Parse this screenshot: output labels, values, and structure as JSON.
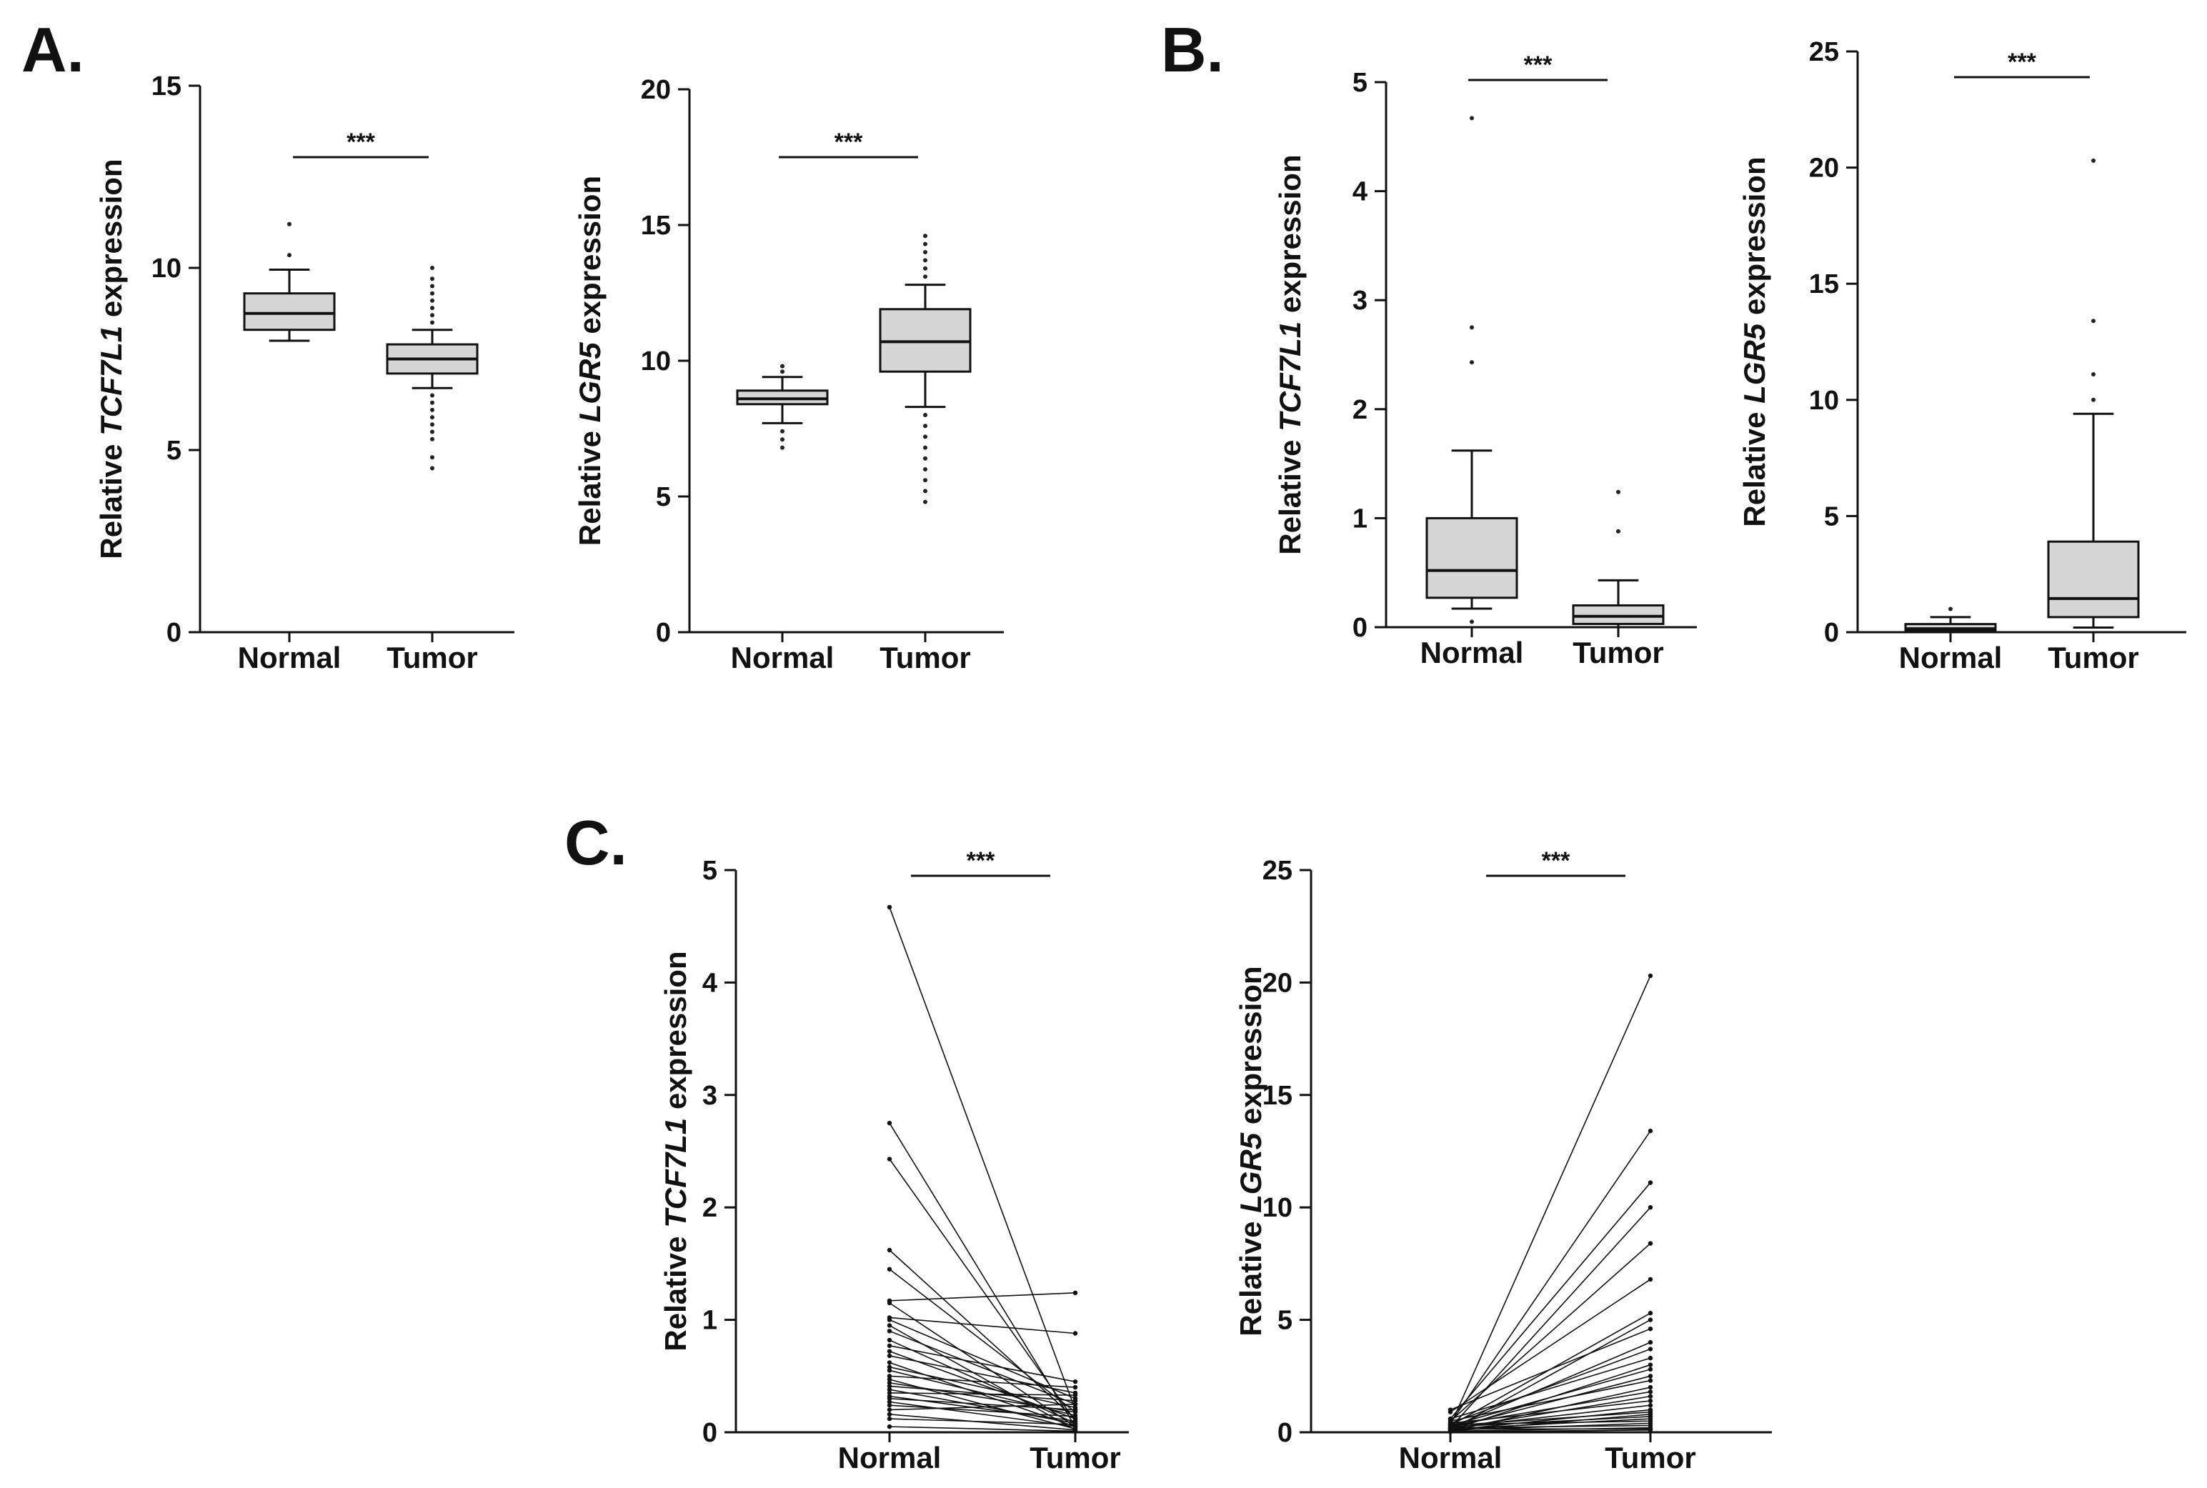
{
  "panels": {
    "A": "A.",
    "B": "B.",
    "C": "C."
  },
  "chart_data": [
    {
      "id": "A1",
      "panel": "A",
      "type": "box",
      "ylabel_pre": "Relative ",
      "ylabel_gene": "TCF7L1",
      "ylabel_post": " expression",
      "ylim": [
        0,
        15
      ],
      "yticks": [
        0,
        5,
        10,
        15
      ],
      "categories": [
        "Normal",
        "Tumor"
      ],
      "significance": "***",
      "boxes": [
        {
          "name": "Normal",
          "whisker_low": 8.0,
          "q1": 8.3,
          "median": 8.75,
          "q3": 9.3,
          "whisker_high": 9.95,
          "outliers": [
            10.35,
            11.2
          ]
        },
        {
          "name": "Tumor",
          "whisker_low": 6.7,
          "q1": 7.1,
          "median": 7.5,
          "q3": 7.9,
          "whisker_high": 8.3,
          "outliers": [
            4.5,
            4.8,
            5.3,
            5.5,
            5.7,
            5.9,
            6.1,
            6.3,
            6.5,
            8.5,
            8.7,
            8.9,
            9.1,
            9.3,
            9.5,
            9.7,
            10.0
          ]
        }
      ]
    },
    {
      "id": "A2",
      "panel": "A",
      "type": "box",
      "ylabel_pre": "Relative ",
      "ylabel_gene": "LGR5",
      "ylabel_post": " expression",
      "ylim": [
        0,
        20
      ],
      "yticks": [
        0,
        5,
        10,
        15,
        20
      ],
      "categories": [
        "Normal",
        "Tumor"
      ],
      "significance": "***",
      "boxes": [
        {
          "name": "Normal",
          "whisker_low": 7.7,
          "q1": 8.4,
          "median": 8.6,
          "q3": 8.9,
          "whisker_high": 9.4,
          "outliers": [
            6.8,
            7.1,
            7.4,
            9.6,
            9.8
          ]
        },
        {
          "name": "Tumor",
          "whisker_low": 8.3,
          "q1": 9.6,
          "median": 10.7,
          "q3": 11.9,
          "whisker_high": 12.8,
          "outliers": [
            4.8,
            5.2,
            5.6,
            6.0,
            6.4,
            6.8,
            7.2,
            7.6,
            8.0,
            13.1,
            13.4,
            13.7,
            14.0,
            14.3,
            14.6
          ]
        }
      ]
    },
    {
      "id": "B1",
      "panel": "B",
      "type": "box",
      "ylabel_pre": "Relative ",
      "ylabel_gene": "TCF7L1",
      "ylabel_post": " expression",
      "ylim": [
        0,
        5
      ],
      "yticks": [
        0,
        1,
        2,
        3,
        4,
        5
      ],
      "categories": [
        "Normal",
        "Tumor"
      ],
      "significance": "***",
      "boxes": [
        {
          "name": "Normal",
          "whisker_low": 0.17,
          "q1": 0.27,
          "median": 0.52,
          "q3": 1.0,
          "whisker_high": 1.62,
          "outliers": [
            0.05,
            2.43,
            2.75,
            4.67
          ]
        },
        {
          "name": "Tumor",
          "whisker_low": 0.0,
          "q1": 0.03,
          "median": 0.1,
          "q3": 0.2,
          "whisker_high": 0.43,
          "outliers": [
            0.88,
            1.24
          ]
        }
      ]
    },
    {
      "id": "B2",
      "panel": "B",
      "type": "box",
      "ylabel_pre": "Relative ",
      "ylabel_gene": "LGR5",
      "ylabel_post": "  expression",
      "ylim": [
        0,
        25
      ],
      "yticks": [
        0,
        5,
        10,
        15,
        20,
        25
      ],
      "categories": [
        "Normal",
        "Tumor"
      ],
      "significance": "***",
      "boxes": [
        {
          "name": "Normal",
          "whisker_low": 0.0,
          "q1": 0.05,
          "median": 0.15,
          "q3": 0.35,
          "whisker_high": 0.65,
          "outliers": [
            1.0
          ]
        },
        {
          "name": "Tumor",
          "whisker_low": 0.2,
          "q1": 0.65,
          "median": 1.45,
          "q3": 3.9,
          "whisker_high": 9.4,
          "outliers": [
            10.0,
            11.1,
            13.4,
            20.3
          ]
        }
      ]
    },
    {
      "id": "C1",
      "panel": "C",
      "type": "line",
      "ylabel_pre": "Relative ",
      "ylabel_gene": "TCF7L1",
      "ylabel_post": " expression",
      "ylim": [
        0,
        5
      ],
      "yticks": [
        0,
        1,
        2,
        3,
        4,
        5
      ],
      "categories": [
        "Normal",
        "Tumor"
      ],
      "significance": "***",
      "pairs": [
        [
          4.67,
          0.2
        ],
        [
          2.75,
          0.05
        ],
        [
          2.43,
          0.1
        ],
        [
          1.62,
          0.12
        ],
        [
          1.45,
          0.18
        ],
        [
          1.17,
          1.24
        ],
        [
          1.15,
          0.05
        ],
        [
          1.02,
          0.88
        ],
        [
          1.0,
          0.3
        ],
        [
          0.95,
          0.02
        ],
        [
          0.9,
          0.25
        ],
        [
          0.82,
          0.08
        ],
        [
          0.77,
          0.45
        ],
        [
          0.72,
          0.12
        ],
        [
          0.68,
          0.35
        ],
        [
          0.62,
          0.05
        ],
        [
          0.58,
          0.22
        ],
        [
          0.55,
          0.15
        ],
        [
          0.5,
          0.4
        ],
        [
          0.47,
          0.03
        ],
        [
          0.44,
          0.18
        ],
        [
          0.41,
          0.28
        ],
        [
          0.38,
          0.08
        ],
        [
          0.35,
          0.33
        ],
        [
          0.32,
          0.1
        ],
        [
          0.3,
          0.2
        ],
        [
          0.27,
          0.05
        ],
        [
          0.24,
          0.14
        ],
        [
          0.2,
          0.25
        ],
        [
          0.16,
          0.02
        ],
        [
          0.12,
          0.07
        ],
        [
          0.05,
          0.01
        ]
      ]
    },
    {
      "id": "C2",
      "panel": "C",
      "type": "line",
      "ylabel_pre": "Relative ",
      "ylabel_gene": "LGR5",
      "ylabel_post": " expression",
      "ylim": [
        0,
        25
      ],
      "yticks": [
        0,
        5,
        10,
        15,
        20,
        25
      ],
      "categories": [
        "Normal",
        "Tumor"
      ],
      "significance": "***",
      "pairs": [
        [
          0.3,
          20.3
        ],
        [
          0.4,
          13.4
        ],
        [
          0.6,
          11.1
        ],
        [
          0.2,
          10.0
        ],
        [
          0.5,
          8.4
        ],
        [
          0.9,
          6.8
        ],
        [
          0.3,
          5.3
        ],
        [
          0.1,
          5.0
        ],
        [
          1.0,
          4.6
        ],
        [
          0.2,
          4.0
        ],
        [
          0.4,
          3.7
        ],
        [
          0.6,
          3.3
        ],
        [
          0.1,
          3.0
        ],
        [
          0.3,
          2.8
        ],
        [
          0.2,
          2.5
        ],
        [
          0.5,
          2.3
        ],
        [
          0.05,
          2.0
        ],
        [
          0.3,
          1.8
        ],
        [
          0.15,
          1.6
        ],
        [
          0.4,
          1.4
        ],
        [
          0.2,
          1.2
        ],
        [
          0.1,
          1.0
        ],
        [
          0.3,
          0.9
        ],
        [
          0.05,
          0.8
        ],
        [
          0.25,
          0.7
        ],
        [
          0.15,
          0.6
        ],
        [
          0.35,
          0.5
        ],
        [
          0.1,
          0.4
        ],
        [
          0.2,
          0.3
        ],
        [
          0.05,
          0.2
        ],
        [
          0.15,
          0.15
        ],
        [
          0.02,
          0.1
        ]
      ]
    }
  ]
}
